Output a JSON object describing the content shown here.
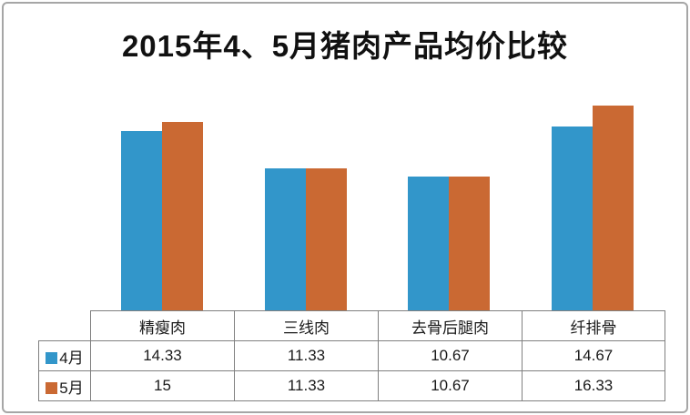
{
  "page": {
    "background": "#ffffff",
    "frame_border_color": "#a6a6a6"
  },
  "chart_data": {
    "type": "bar",
    "title": "2015年4、5月猪肉产品均价比较",
    "categories": [
      "精瘦肉",
      "三线肉",
      "去骨后腿肉",
      "纤排骨"
    ],
    "series": [
      {
        "name": "4月",
        "color": "#3296ca",
        "values": [
          14.33,
          11.33,
          10.67,
          14.67
        ],
        "display": [
          "14.33",
          "11.33",
          "10.67",
          "14.67"
        ]
      },
      {
        "name": "5月",
        "color": "#ca6933",
        "values": [
          15,
          11.33,
          10.67,
          16.33
        ],
        "display": [
          "15",
          "11.33",
          "10.67",
          "16.33"
        ]
      }
    ],
    "ylim": [
      0,
      18
    ],
    "xlabel": "",
    "ylabel": "",
    "grid": false,
    "y_axis_shown": false,
    "value_axis_labels_shown": false,
    "legend_position": "data-table-left-column",
    "data_table_shown": true,
    "table_line_color": "#808080",
    "text_color": "#1a1a1a"
  }
}
